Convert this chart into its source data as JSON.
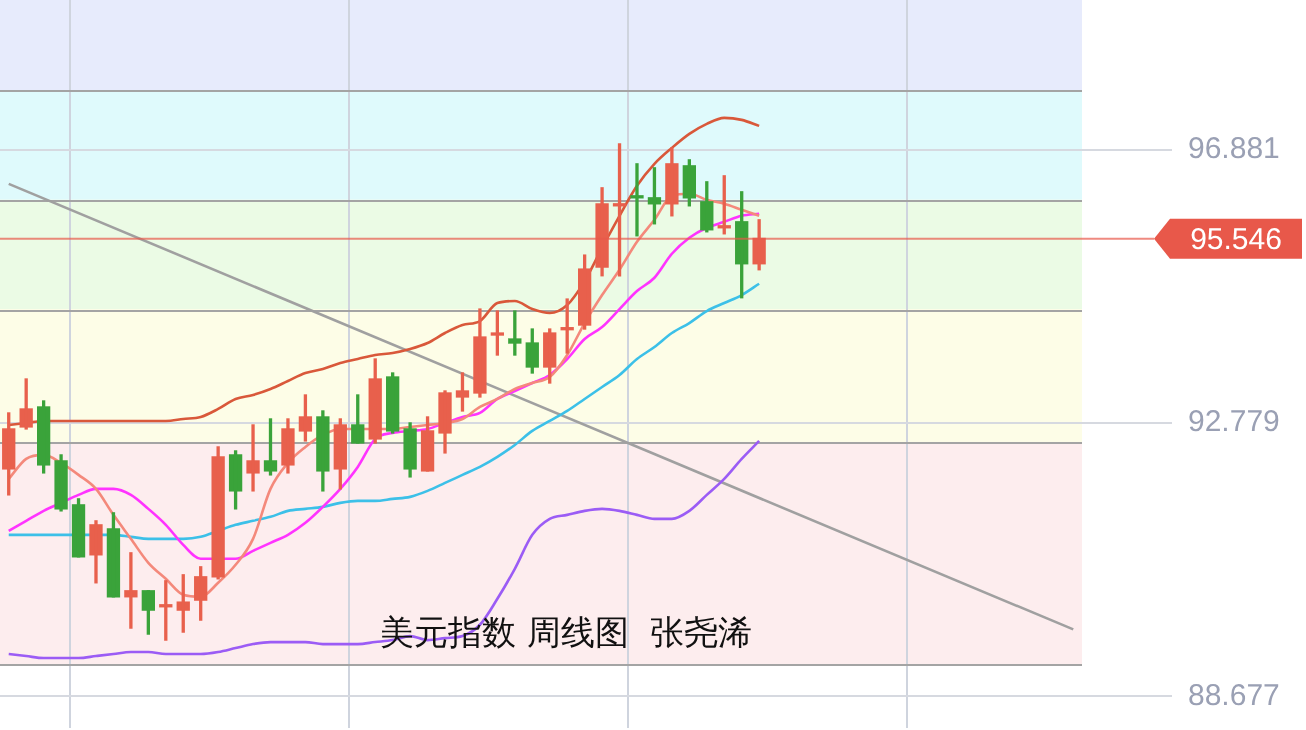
{
  "chart_data": {
    "type": "candlestick",
    "title": "美元指数 周线图  张尧浠",
    "categories": [
      null,
      null,
      null,
      null,
      null,
      null,
      null,
      null,
      null,
      null,
      null,
      null,
      null,
      null,
      null,
      null,
      null,
      null,
      null,
      null,
      null,
      null,
      null,
      null,
      null,
      null,
      null,
      null,
      null,
      null,
      null,
      null,
      null,
      null,
      null,
      null,
      null,
      null,
      null,
      null,
      null,
      null,
      null,
      null,
      null,
      null,
      null,
      null,
      null,
      null,
      null,
      null,
      null,
      null,
      null,
      null,
      null,
      null,
      null,
      null,
      null,
      null
    ],
    "ohlc": [
      [
        92.09,
        92.93,
        91.7,
        92.69
      ],
      [
        92.72,
        93.44,
        92.69,
        92.99
      ],
      [
        93.02,
        93.11,
        92.03,
        92.15
      ],
      [
        92.21,
        92.3,
        91.46,
        91.49
      ],
      [
        91.55,
        91.64,
        90.77,
        90.77
      ],
      [
        90.8,
        91.31,
        90.38,
        91.25
      ],
      [
        91.19,
        91.43,
        90.17,
        90.17
      ],
      [
        90.17,
        90.83,
        89.7,
        90.26
      ],
      [
        90.26,
        90.26,
        89.61,
        89.97
      ],
      [
        90.02,
        90.41,
        89.52,
        90.03
      ],
      [
        89.97,
        90.5,
        89.64,
        90.09
      ],
      [
        90.12,
        90.62,
        89.82,
        90.47
      ],
      [
        90.47,
        92.42,
        90.44,
        92.27
      ],
      [
        92.3,
        92.36,
        91.49,
        91.76
      ],
      [
        92.03,
        92.75,
        91.76,
        92.21
      ],
      [
        92.21,
        92.84,
        92.0,
        92.06
      ],
      [
        92.15,
        92.84,
        92.03,
        92.69
      ],
      [
        92.66,
        93.2,
        92.51,
        92.87
      ],
      [
        92.87,
        92.96,
        91.76,
        92.06
      ],
      [
        92.09,
        92.84,
        91.79,
        92.75
      ],
      [
        92.75,
        93.2,
        92.48,
        92.48
      ],
      [
        92.54,
        93.74,
        92.48,
        93.44
      ],
      [
        93.47,
        93.53,
        92.63,
        92.66
      ],
      [
        92.69,
        92.78,
        91.97,
        92.09
      ],
      [
        92.06,
        92.87,
        92.06,
        92.66
      ],
      [
        92.63,
        93.26,
        92.33,
        93.23
      ],
      [
        93.17,
        93.53,
        92.96,
        93.26
      ],
      [
        93.23,
        94.49,
        93.17,
        94.07
      ],
      [
        94.1,
        94.46,
        93.8,
        94.11
      ],
      [
        94.04,
        94.46,
        93.8,
        93.98
      ],
      [
        93.98,
        94.19,
        93.53,
        93.62
      ],
      [
        93.62,
        94.19,
        93.38,
        94.13
      ],
      [
        94.18,
        94.64,
        93.83,
        94.19
      ],
      [
        94.25,
        95.3,
        94.19,
        95.09
      ],
      [
        95.12,
        96.31,
        94.99,
        96.07
      ],
      [
        96.04,
        96.97,
        94.99,
        96.07
      ],
      [
        96.19,
        96.67,
        95.59,
        96.16
      ],
      [
        96.16,
        96.61,
        95.77,
        96.07
      ],
      [
        96.07,
        96.91,
        95.89,
        96.67
      ],
      [
        96.64,
        96.73,
        96.04,
        96.16
      ],
      [
        96.1,
        96.4,
        95.65,
        95.68
      ],
      [
        95.71,
        96.49,
        95.62,
        95.74
      ],
      [
        95.8,
        96.25,
        94.66,
        95.17
      ],
      [
        95.17,
        95.83,
        95.08,
        95.55
      ],
      null,
      null,
      null,
      null,
      null,
      null,
      null,
      null,
      null,
      null,
      null,
      null,
      null,
      null,
      null,
      null,
      null,
      null
    ],
    "colors": [
      "#e8604c",
      "#e8604c",
      "#3aa33a",
      "#3aa33a",
      "#3aa33a",
      "#e8604c",
      "#3aa33a",
      "#e8604c",
      "#3aa33a",
      "#e8604c",
      "#e8604c",
      "#e8604c",
      "#e8604c",
      "#3aa33a",
      "#e8604c",
      "#3aa33a",
      "#e8604c",
      "#e8604c",
      "#3aa33a",
      "#e8604c",
      "#3aa33a",
      "#e8604c",
      "#3aa33a",
      "#3aa33a",
      "#e8604c",
      "#e8604c",
      "#e8604c",
      "#e8604c",
      "#e8604c",
      "#3aa33a",
      "#3aa33a",
      "#e8604c",
      "#e8604c",
      "#e8604c",
      "#e8604c",
      "#e8604c",
      "#3aa33a",
      "#3aa33a",
      "#e8604c",
      "#3aa33a",
      "#3aa33a",
      "#e8604c",
      "#3aa33a",
      "#e8604c",
      null,
      null,
      null,
      null,
      null,
      null,
      null,
      null,
      null,
      null,
      null,
      null,
      null,
      null,
      null,
      null,
      null,
      null
    ],
    "series": [
      {
        "type": "line",
        "color": "#d9583a",
        "values": [
          92.75,
          92.78,
          92.81,
          92.81,
          92.81,
          92.81,
          92.81,
          92.81,
          92.81,
          92.81,
          92.84,
          92.87,
          92.99,
          93.14,
          93.2,
          93.29,
          93.41,
          93.53,
          93.59,
          93.68,
          93.74,
          93.8,
          93.83,
          93.89,
          93.98,
          94.13,
          94.25,
          94.31,
          94.58,
          94.61,
          94.49,
          94.43,
          94.55,
          94.91,
          95.41,
          95.89,
          96.34,
          96.67,
          96.91,
          97.12,
          97.27,
          97.36,
          97.33,
          97.24,
          null,
          null,
          null,
          null,
          null,
          null,
          null,
          null,
          null,
          null,
          null,
          null,
          null,
          null,
          null,
          null,
          null,
          null
        ]
      },
      {
        "type": "line",
        "color": "#f4897b",
        "values": [
          91.94,
          92.24,
          92.3,
          92.18,
          92.0,
          91.79,
          91.4,
          91.04,
          90.68,
          90.44,
          90.2,
          90.17,
          90.38,
          90.65,
          91.04,
          91.79,
          92.18,
          92.42,
          92.6,
          92.69,
          92.69,
          92.69,
          92.69,
          92.72,
          92.75,
          92.78,
          92.84,
          93.02,
          93.14,
          93.29,
          93.38,
          93.47,
          93.8,
          94.28,
          94.7,
          95.08,
          95.5,
          95.83,
          96.19,
          96.22,
          96.13,
          96.07,
          95.98,
          95.89,
          null,
          null,
          null,
          null,
          null,
          null,
          null,
          null,
          null,
          null,
          null,
          null,
          null,
          null,
          null,
          null,
          null,
          null
        ]
      },
      {
        "type": "line",
        "color": "#ff33ff",
        "values": [
          91.16,
          91.31,
          91.46,
          91.58,
          91.7,
          91.79,
          91.79,
          91.7,
          91.49,
          91.25,
          90.95,
          90.74,
          90.74,
          90.74,
          90.86,
          90.98,
          91.1,
          91.28,
          91.52,
          91.79,
          92.12,
          92.54,
          92.63,
          92.66,
          92.69,
          92.78,
          92.87,
          92.93,
          93.14,
          93.26,
          93.38,
          93.5,
          93.74,
          94.04,
          94.22,
          94.49,
          94.76,
          94.96,
          95.32,
          95.56,
          95.71,
          95.8,
          95.89,
          95.92,
          null,
          null,
          null,
          null,
          null,
          null,
          null,
          null,
          null,
          null,
          null,
          null,
          null,
          null,
          null,
          null,
          null,
          null
        ]
      },
      {
        "type": "line",
        "color": "#3cc0e8",
        "values": [
          91.1,
          91.1,
          91.1,
          91.1,
          91.1,
          91.1,
          91.1,
          91.07,
          91.04,
          91.04,
          91.04,
          91.07,
          91.16,
          91.25,
          91.31,
          91.37,
          91.46,
          91.49,
          91.52,
          91.58,
          91.61,
          91.61,
          91.64,
          91.67,
          91.76,
          91.88,
          92.0,
          92.12,
          92.27,
          92.45,
          92.66,
          92.81,
          92.96,
          93.14,
          93.32,
          93.5,
          93.74,
          93.92,
          94.13,
          94.28,
          94.46,
          94.58,
          94.7,
          94.87,
          null,
          null,
          null,
          null,
          null,
          null,
          null,
          null,
          null,
          null,
          null,
          null,
          null,
          null,
          null,
          null,
          null,
          null
        ]
      },
      {
        "type": "line",
        "color": "#9b5cf5",
        "values": [
          89.31,
          89.28,
          89.25,
          89.25,
          89.25,
          89.28,
          89.31,
          89.34,
          89.34,
          89.31,
          89.31,
          89.31,
          89.34,
          89.4,
          89.46,
          89.49,
          89.49,
          89.49,
          89.46,
          89.46,
          89.46,
          89.49,
          89.52,
          89.58,
          89.52,
          89.55,
          89.58,
          89.75,
          90.14,
          90.59,
          91.1,
          91.34,
          91.4,
          91.46,
          91.49,
          91.46,
          91.4,
          91.34,
          91.34,
          91.46,
          91.7,
          91.94,
          92.24,
          92.51,
          null,
          null,
          null,
          null,
          null,
          null,
          null,
          null,
          null,
          null,
          null,
          null,
          null,
          null,
          null,
          null,
          null,
          null
        ]
      },
      {
        "type": "line",
        "color": "#a0a0a0",
        "values": [
          96.37,
          null,
          null,
          null,
          null,
          null,
          null,
          null,
          null,
          null,
          null,
          null,
          null,
          null,
          null,
          null,
          null,
          null,
          null,
          null,
          null,
          null,
          null,
          null,
          null,
          null,
          null,
          null,
          null,
          null,
          null,
          null,
          null,
          null,
          null,
          null,
          null,
          null,
          null,
          null,
          null,
          null,
          null,
          null,
          null,
          null,
          null,
          null,
          null,
          null,
          null,
          null,
          null,
          null,
          null,
          null,
          null,
          null,
          null,
          null,
          null,
          89.68
        ]
      }
    ],
    "ylim": [
      88.2,
      99.13
    ],
    "yticks": [
      88.677,
      92.779,
      96.881
    ],
    "grid": true,
    "bands": [
      {
        "axis": "y",
        "from": 97.78,
        "to": 99.13,
        "color": "#e7ebfc"
      },
      {
        "axis": "y",
        "from": 96.13,
        "to": 97.78,
        "color": "#dffafc"
      },
      {
        "axis": "y",
        "from": 94.49,
        "to": 96.13,
        "color": "#ebfbe5"
      },
      {
        "axis": "y",
        "from": 92.48,
        "to": 94.49,
        "color": "#fdfde7"
      },
      {
        "axis": "y",
        "from": 89.16,
        "to": 92.48,
        "color": "#fdedee"
      }
    ],
    "ref_lines": [
      {
        "axis": "y",
        "value": 95.546,
        "label": "95.546",
        "color": "#e8584a"
      }
    ]
  }
}
